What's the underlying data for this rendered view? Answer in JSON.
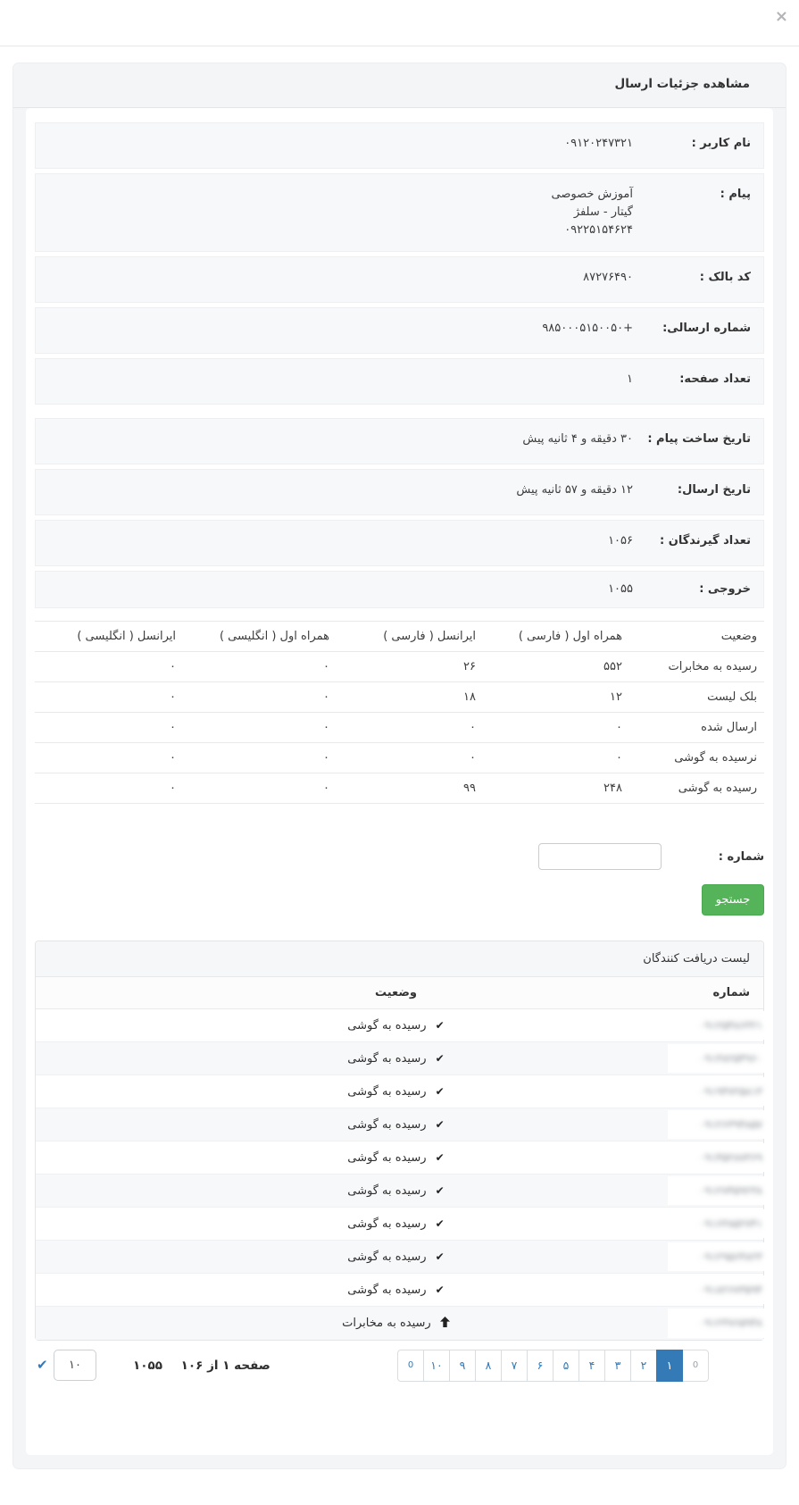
{
  "topbar": {
    "close_label": "×"
  },
  "modal": {
    "title": "مشاهده جزئیات ارسال",
    "details": [
      {
        "label": "نام کاربر :",
        "value": "۰۹۱۲۰۲۴۷۳۲۱"
      },
      {
        "label": "پیام :",
        "value_lines": [
          "آموزش خصوصی",
          "گیتار - سلفژ",
          "۰۹۲۲۵۱۵۴۶۲۴"
        ]
      },
      {
        "label": "کد بالک :",
        "value": "۸۷۲۷۶۴۹۰"
      },
      {
        "label": "شماره ارسالی:",
        "value": "+۹۸۵۰۰۰۵۱۵۰۰۵۰"
      },
      {
        "label": "تعداد صفحه:",
        "value": "۱"
      },
      {
        "label": "تاریخ ساخت پیام :",
        "value": "۳۰ دقیقه و ۴ ثانیه پیش",
        "section_break": true
      },
      {
        "label": "تاریخ ارسال:",
        "value": "۱۲ دقیقه و ۵۷ ثانیه پیش"
      },
      {
        "label": "تعداد گیرندگان :",
        "value": "۱۰۵۶"
      },
      {
        "label": "خروجی :",
        "value": "۱۰۵۵"
      }
    ]
  },
  "status_table": {
    "headers": [
      "وضعیت",
      "همراه اول ( فارسی )",
      "ایرانسل ( فارسی )",
      "همراه اول ( انگلیسی )",
      "ایرانسل ( انگلیسی )"
    ],
    "rows": [
      [
        "رسیده به مخابرات",
        "۵۵۲",
        "۲۶",
        "۰",
        "۰"
      ],
      [
        "بلک لیست",
        "۱۲",
        "۱۸",
        "۰",
        "۰"
      ],
      [
        "ارسال شده",
        "۰",
        "۰",
        "۰",
        "۰"
      ],
      [
        "نرسیده به گوشی",
        "۰",
        "۰",
        "۰",
        "۰"
      ],
      [
        "رسیده به گوشی",
        "۲۴۸",
        "۹۹",
        "۰",
        "۰"
      ]
    ]
  },
  "search": {
    "label": "شماره :",
    "value": "",
    "button_label": "جستجو"
  },
  "recipients": {
    "title": "لیست دریافت کنندگان",
    "number_header": "شماره",
    "status_header": "وضعیت",
    "check_icon": "✔",
    "rows": [
      {
        "number_masked": "۰۹۱۲۵۴۸۶۳۲۱",
        "status": "رسیده به گوشی",
        "icon": "check"
      },
      {
        "number_masked": "۰۹۱۳۸۲۵۴۹۶۰",
        "status": "رسیده به گوشی",
        "icon": "check"
      },
      {
        "number_masked": "۰۹۱۹۴۷۲۵۸۱۳",
        "status": "رسیده به گوشی",
        "icon": "check"
      },
      {
        "number_masked": "۰۹۱۲۶۳۹۴۸۵۷",
        "status": "رسیده به گوشی",
        "icon": "check"
      },
      {
        "number_masked": "۰۹۱۴۵۲۸۷۳۶۹",
        "status": "رسیده به گوشی",
        "icon": "check"
      },
      {
        "number_masked": "۰۹۱۲۷۴۵۹۲۳۸",
        "status": "رسیده به گوشی",
        "icon": "check"
      },
      {
        "number_masked": "۰۹۱۶۳۸۵۲۷۴۱",
        "status": "رسیده به گوشی",
        "icon": "check"
      },
      {
        "number_masked": "۰۹۱۲۹۵۶۴۸۲۳",
        "status": "رسیده به گوشی",
        "icon": "check"
      },
      {
        "number_masked": "۰۹۱۸۲۶۷۳۵۹۴",
        "status": "رسیده به گوشی",
        "icon": "check"
      },
      {
        "number_masked": "۰۹۱۲۳۷۶۵۹۴۸",
        "status": "رسیده به مخابرات",
        "icon": "arrow-up"
      }
    ]
  },
  "footer": {
    "page_info": "صفحه ۱ از ۱۰۶",
    "total": "۱۰۵۵",
    "per_page": "۱۰",
    "apply_icon": "✔",
    "pagination": {
      "prev_label": "0",
      "next_label": "0",
      "pages": [
        "۱",
        "۲",
        "۳",
        "۴",
        "۵",
        "۶",
        "۷",
        "۸",
        "۹",
        "۱۰"
      ],
      "active_page": "۱"
    }
  },
  "colors": {
    "accent_blue": "#337ab7",
    "success_green": "#55b45a",
    "panel_gray": "#f6f7f9"
  }
}
